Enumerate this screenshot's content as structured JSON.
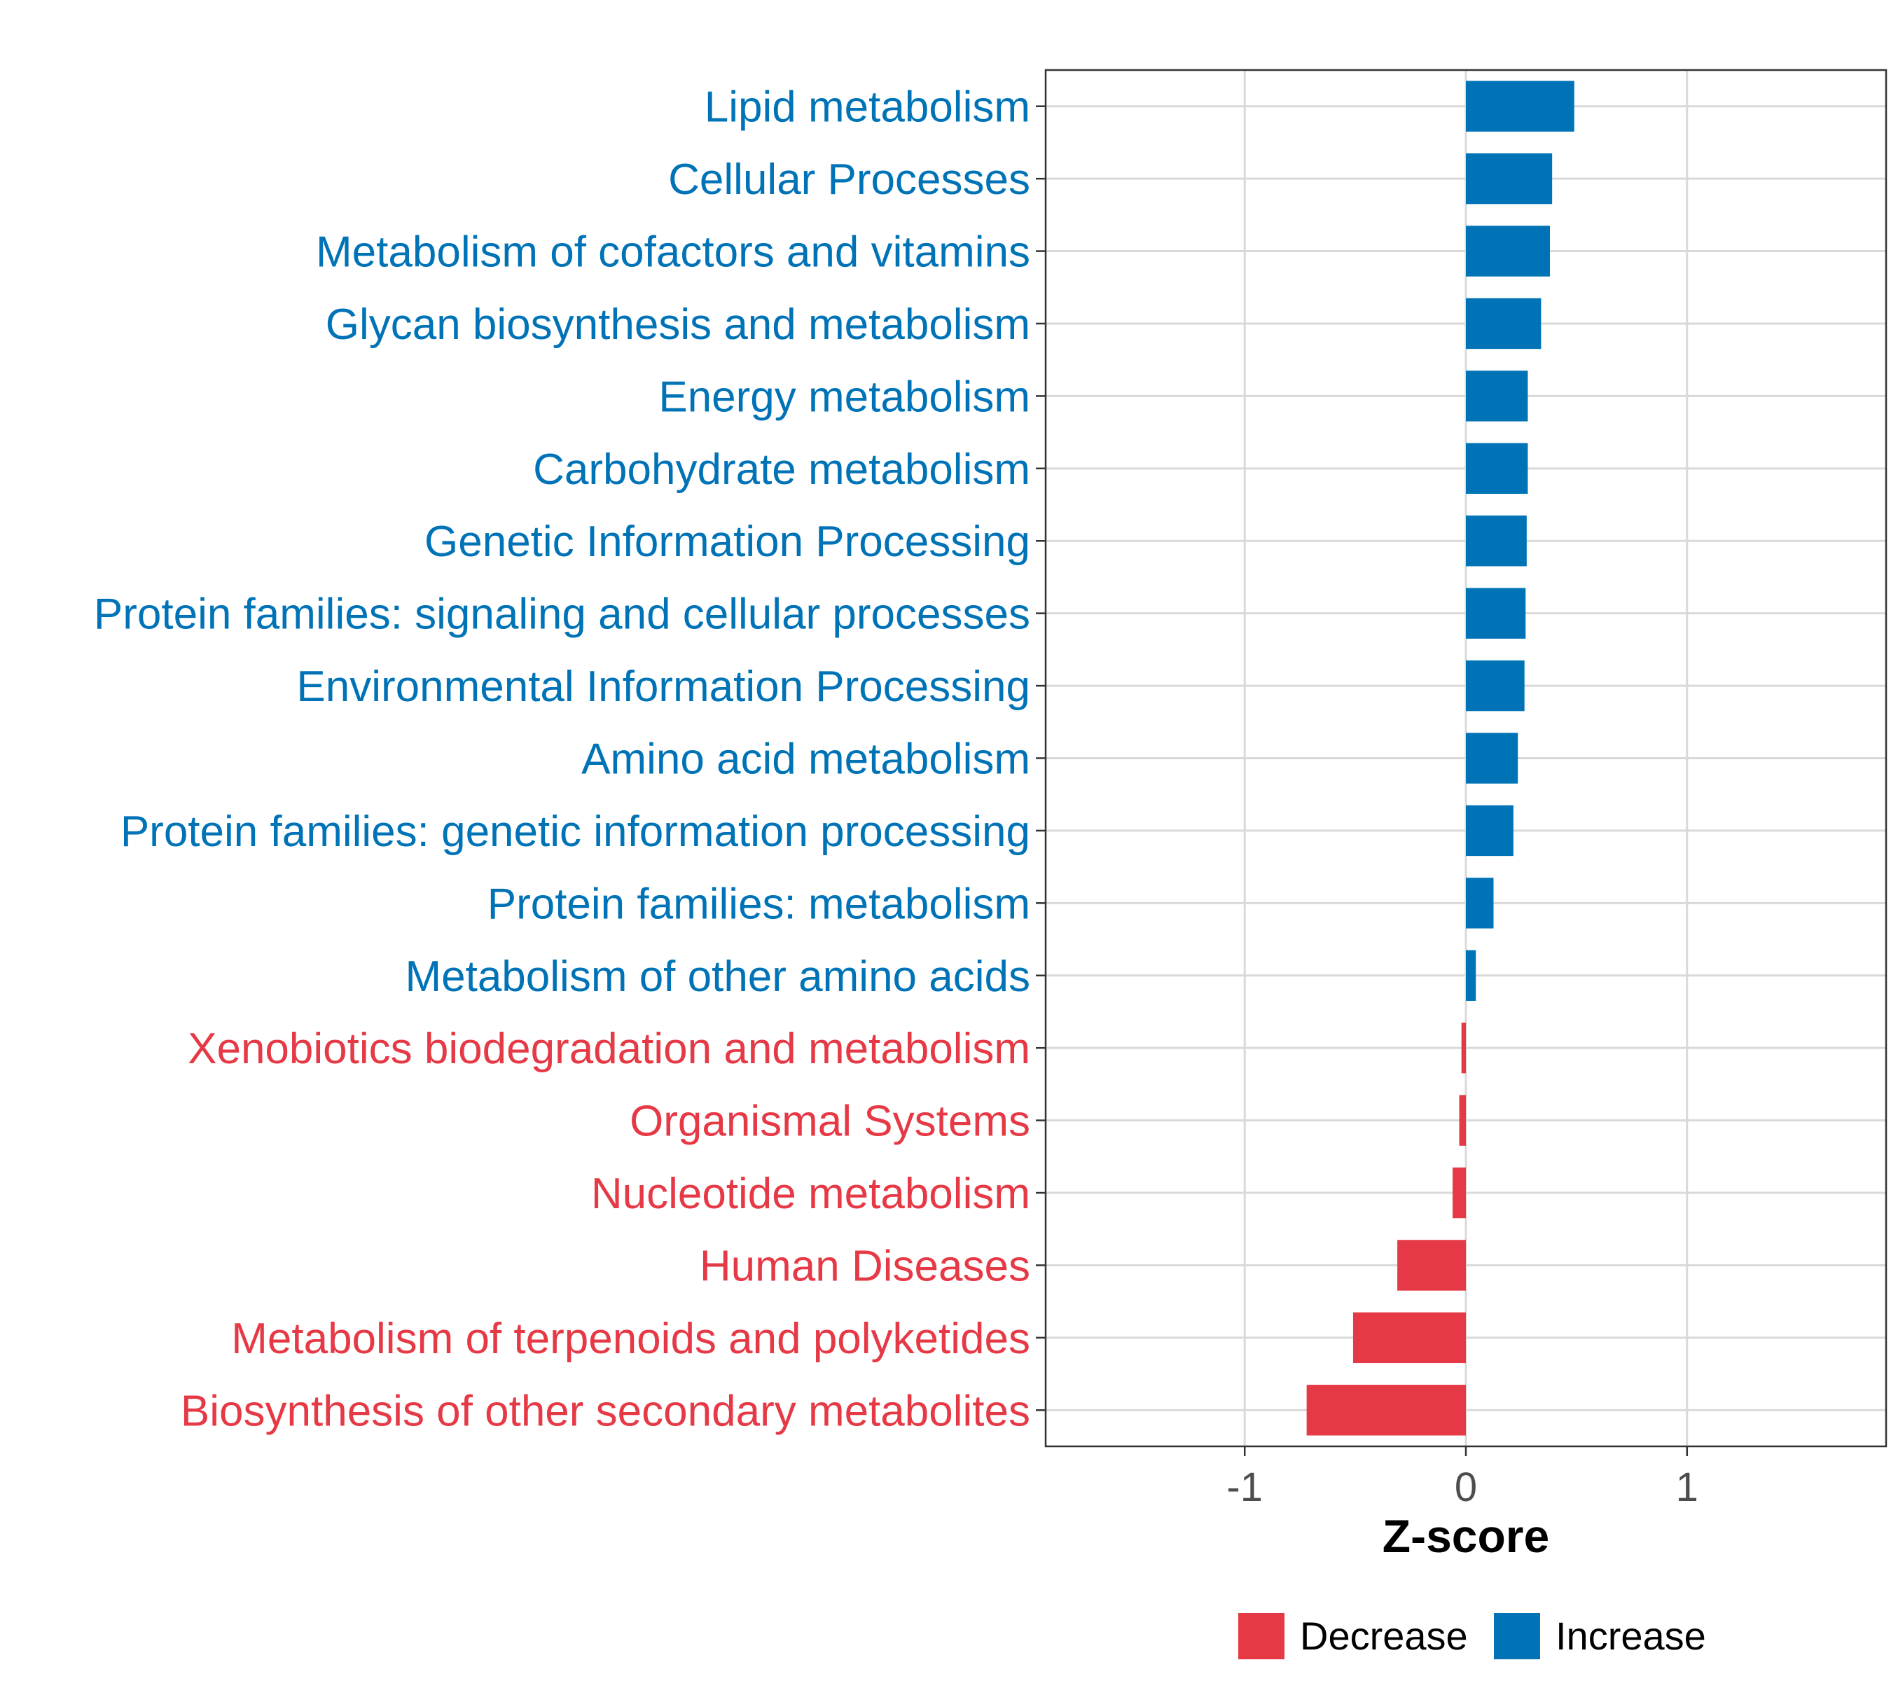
{
  "chart_data": {
    "type": "bar",
    "orientation": "horizontal",
    "title": "",
    "xlabel": "Z-score",
    "ylabel": "",
    "xlim": [
      -1.9,
      1.9
    ],
    "xticks": [
      -1,
      0,
      1
    ],
    "xtick_labels": [
      "-1",
      "0",
      "1"
    ],
    "grid": true,
    "legend_position": "bottom",
    "colors": {
      "Decrease": "#e63946",
      "Increase": "#0073b7"
    },
    "legend": [
      {
        "name": "Decrease",
        "color": "#e63946"
      },
      {
        "name": "Increase",
        "color": "#0073b7"
      }
    ],
    "categories": [
      "Lipid metabolism",
      "Cellular Processes",
      "Metabolism of cofactors and vitamins",
      "Glycan biosynthesis and metabolism",
      "Energy metabolism",
      "Carbohydrate metabolism",
      "Genetic Information Processing",
      "Protein families: signaling and cellular processes",
      "Environmental Information Processing",
      "Amino acid metabolism",
      "Protein families: genetic information processing",
      "Protein families: metabolism",
      "Metabolism of other amino acids",
      "Xenobiotics biodegradation and metabolism",
      "Organismal Systems",
      "Nucleotide metabolism",
      "Human Diseases",
      "Metabolism of terpenoids and polyketides",
      "Biosynthesis of other secondary metabolites"
    ],
    "values": [
      0.49,
      0.39,
      0.38,
      0.34,
      0.28,
      0.28,
      0.275,
      0.27,
      0.265,
      0.235,
      0.215,
      0.125,
      0.045,
      -0.02,
      -0.03,
      -0.06,
      -0.31,
      -0.51,
      -0.72
    ],
    "groups": [
      "Increase",
      "Increase",
      "Increase",
      "Increase",
      "Increase",
      "Increase",
      "Increase",
      "Increase",
      "Increase",
      "Increase",
      "Increase",
      "Increase",
      "Increase",
      "Decrease",
      "Decrease",
      "Decrease",
      "Decrease",
      "Decrease",
      "Decrease"
    ]
  }
}
